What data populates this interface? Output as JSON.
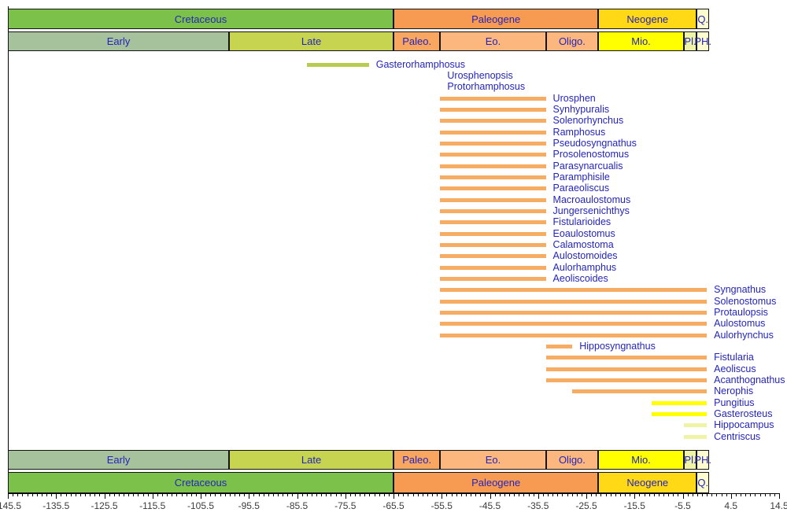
{
  "chart_data": {
    "type": "range-bar-timeline",
    "description": "Stratigraphic ranges of syngnathiform fish genera against the geological timescale",
    "x_axis": {
      "unit": "Ma",
      "min": -145.5,
      "max": 14.5,
      "major_tick_step": 10,
      "minor_tick_step": 1,
      "tick_labels": [
        "-145.5",
        "-135.5",
        "-125.5",
        "-115.5",
        "-105.5",
        "-95.5",
        "-85.5",
        "-75.5",
        "-65.5",
        "-55.5",
        "-45.5",
        "-35.5",
        "-25.5",
        "-15.5",
        "-5.5",
        "4.5",
        "14.5"
      ]
    },
    "periods": [
      {
        "label": "Cretaceous",
        "start": -145.5,
        "end": -65.5,
        "color": "#7cc24a"
      },
      {
        "label": "Paleogene",
        "start": -65.5,
        "end": -23.0,
        "color": "#f89b52"
      },
      {
        "label": "Neogene",
        "start": -23.0,
        "end": -2.6,
        "color": "#ffd816"
      },
      {
        "label": "Q.",
        "start": -2.6,
        "end": 0,
        "color": "#fcfccf"
      }
    ],
    "epochs": [
      {
        "label": "Early",
        "start": -145.5,
        "end": -99.6,
        "color": "#a6c29c"
      },
      {
        "label": "Late",
        "start": -99.6,
        "end": -65.5,
        "color": "#c7d44f"
      },
      {
        "label": "Paleo.",
        "start": -65.5,
        "end": -55.8,
        "color": "#f9a661"
      },
      {
        "label": "Eo.",
        "start": -55.8,
        "end": -33.9,
        "color": "#fbb77e"
      },
      {
        "label": "Oligo.",
        "start": -33.9,
        "end": -23.0,
        "color": "#fbb77e"
      },
      {
        "label": "Mio.",
        "start": -23.0,
        "end": -5.3,
        "color": "#ffff00"
      },
      {
        "label": "Pl.",
        "start": -5.3,
        "end": -2.6,
        "color": "#eff3a6"
      },
      {
        "label": "PH.",
        "start": -2.6,
        "end": 0,
        "color": "#fcfccf"
      }
    ],
    "taxa": [
      {
        "name": "Gasterorhamphosus",
        "start": -83.5,
        "end": -70.6,
        "color": "#b9cc51"
      },
      {
        "name": "Urosphenopsis",
        "start": -55.8,
        "end": -55.8,
        "color": "#f7ac64"
      },
      {
        "name": "Protorhamphosus",
        "start": -55.8,
        "end": -55.8,
        "color": "#f7ac64"
      },
      {
        "name": "Urosphen",
        "start": -55.8,
        "end": -33.9,
        "color": "#f7ac64"
      },
      {
        "name": "Synhypuralis",
        "start": -55.8,
        "end": -33.9,
        "color": "#f7ac64"
      },
      {
        "name": "Solenorhynchus",
        "start": -55.8,
        "end": -33.9,
        "color": "#f7ac64"
      },
      {
        "name": "Ramphosus",
        "start": -55.8,
        "end": -33.9,
        "color": "#f7ac64"
      },
      {
        "name": "Pseudosyngnathus",
        "start": -55.8,
        "end": -33.9,
        "color": "#f7ac64"
      },
      {
        "name": "Prosolenostomus",
        "start": -55.8,
        "end": -33.9,
        "color": "#f7ac64"
      },
      {
        "name": "Parasynarcualis",
        "start": -55.8,
        "end": -33.9,
        "color": "#f7ac64"
      },
      {
        "name": "Paramphisile",
        "start": -55.8,
        "end": -33.9,
        "color": "#f7ac64"
      },
      {
        "name": "Paraeoliscus",
        "start": -55.8,
        "end": -33.9,
        "color": "#f7ac64"
      },
      {
        "name": "Macroaulostomus",
        "start": -55.8,
        "end": -33.9,
        "color": "#f7ac64"
      },
      {
        "name": "Jungersenichthys",
        "start": -55.8,
        "end": -33.9,
        "color": "#f7ac64"
      },
      {
        "name": "Fistularioides",
        "start": -55.8,
        "end": -33.9,
        "color": "#f7ac64"
      },
      {
        "name": "Eoaulostomus",
        "start": -55.8,
        "end": -33.9,
        "color": "#f7ac64"
      },
      {
        "name": "Calamostoma",
        "start": -55.8,
        "end": -33.9,
        "color": "#f7ac64"
      },
      {
        "name": "Aulostomoides",
        "start": -55.8,
        "end": -33.9,
        "color": "#f7ac64"
      },
      {
        "name": "Aulorhamphus",
        "start": -55.8,
        "end": -33.9,
        "color": "#f7ac64"
      },
      {
        "name": "Aeoliscoides",
        "start": -55.8,
        "end": -33.9,
        "color": "#f7ac64"
      },
      {
        "name": "Syngnathus",
        "start": -55.8,
        "end": -0.5,
        "color": "#f7ac64"
      },
      {
        "name": "Solenostomus",
        "start": -55.8,
        "end": -0.5,
        "color": "#f7ac64"
      },
      {
        "name": "Protaulopsis",
        "start": -55.8,
        "end": -0.5,
        "color": "#f7ac64"
      },
      {
        "name": "Aulostomus",
        "start": -55.8,
        "end": -0.5,
        "color": "#f7ac64"
      },
      {
        "name": "Aulorhynchus",
        "start": -55.8,
        "end": -0.5,
        "color": "#f7ac64"
      },
      {
        "name": "Hipposyngnathus",
        "start": -33.9,
        "end": -28.4,
        "color": "#f7ac64"
      },
      {
        "name": "Fistularia",
        "start": -33.9,
        "end": -0.5,
        "color": "#f7ac64"
      },
      {
        "name": "Aeoliscus",
        "start": -33.9,
        "end": -0.5,
        "color": "#f7ac64"
      },
      {
        "name": "Acanthognathus",
        "start": -33.9,
        "end": -0.5,
        "color": "#f7ac64"
      },
      {
        "name": "Nerophis",
        "start": -28.4,
        "end": -0.5,
        "color": "#f7ac64"
      },
      {
        "name": "Pungitius",
        "start": -11.9,
        "end": -0.5,
        "color": "#ffff00"
      },
      {
        "name": "Gasterosteus",
        "start": -11.9,
        "end": -0.5,
        "color": "#ffff00"
      },
      {
        "name": "Hippocampus",
        "start": -5.3,
        "end": -0.5,
        "color": "#eff3a6"
      },
      {
        "name": "Centriscus",
        "start": -5.3,
        "end": -0.5,
        "color": "#eff3a6"
      }
    ]
  },
  "styles": {
    "taxon_label_color": "#2424bc",
    "band_label_color": "#2424bc",
    "axis_color": "#000000",
    "tick_label_color": "#3d3d3d",
    "background": "#ffffff"
  }
}
